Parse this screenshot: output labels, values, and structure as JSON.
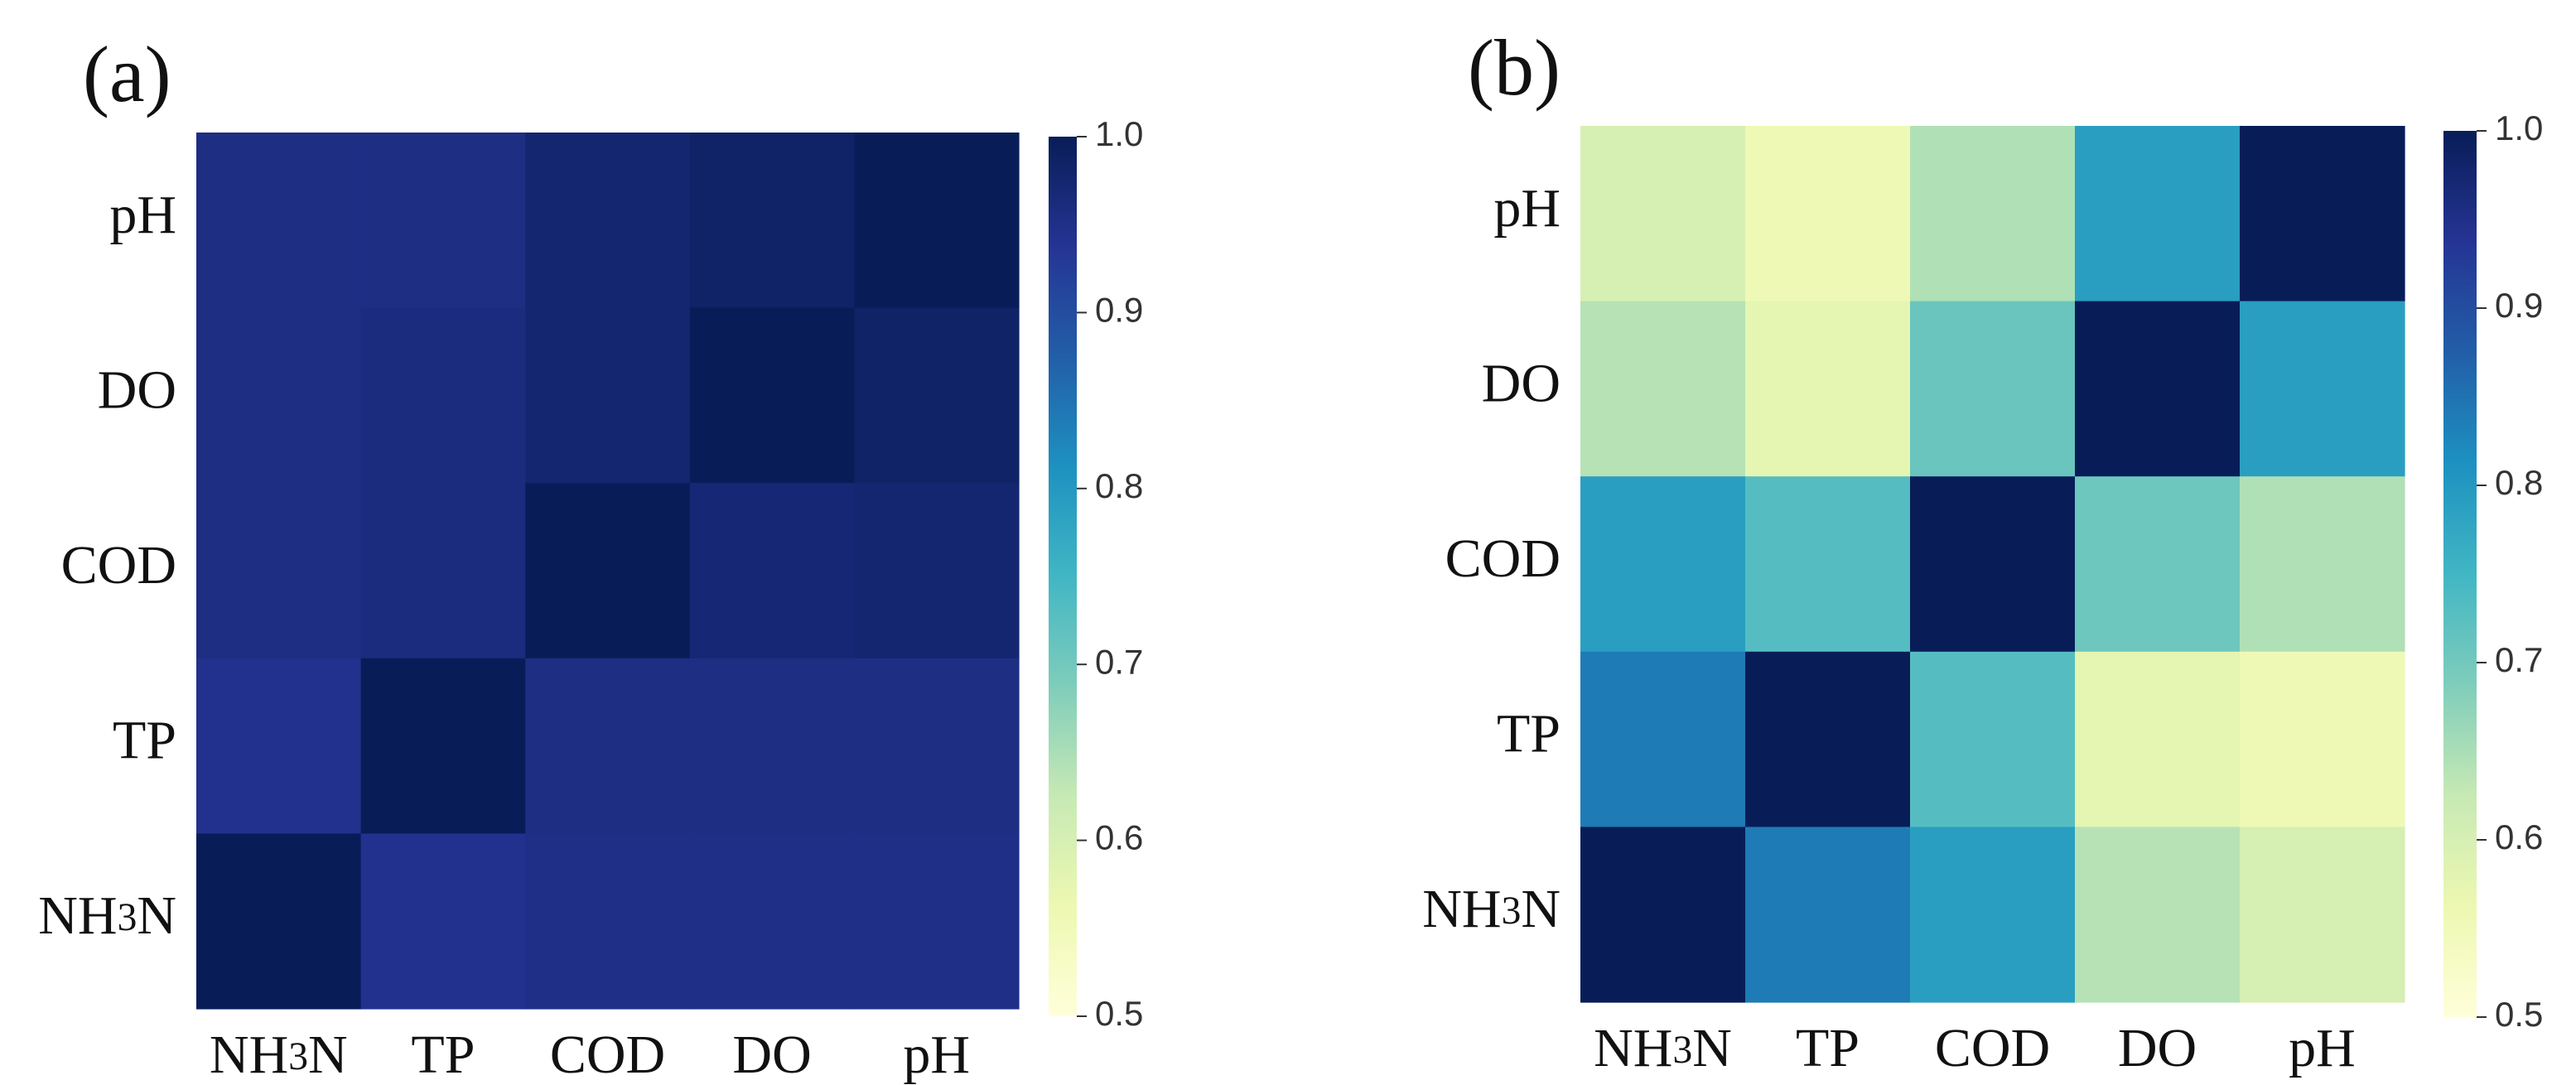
{
  "chart_data": [
    {
      "type": "heatmap",
      "panel_label": "(a)",
      "x_categories": [
        "NH3N",
        "TP",
        "COD",
        "DO",
        "pH"
      ],
      "y_categories": [
        "pH",
        "DO",
        "COD",
        "TP",
        "NH3N"
      ],
      "values": [
        [
          0.955,
          0.955,
          0.975,
          0.985,
          1.0
        ],
        [
          0.955,
          0.96,
          0.975,
          1.0,
          0.985
        ],
        [
          0.955,
          0.96,
          1.0,
          0.97,
          0.975
        ],
        [
          0.945,
          1.0,
          0.955,
          0.955,
          0.955
        ],
        [
          1.0,
          0.945,
          0.95,
          0.95,
          0.95
        ]
      ],
      "colorbar": {
        "min": 0.5,
        "max": 1.0,
        "ticks": [
          "0.5",
          "0.6",
          "0.7",
          "0.8",
          "0.9",
          "1.0"
        ]
      },
      "colormap": "YlGnBu"
    },
    {
      "type": "heatmap",
      "panel_label": "(b)",
      "x_categories": [
        "NH3N",
        "TP",
        "COD",
        "DO",
        "pH"
      ],
      "y_categories": [
        "pH",
        "DO",
        "COD",
        "TP",
        "NH3N"
      ],
      "values": [
        [
          0.6,
          0.555,
          0.645,
          0.79,
          1.0
        ],
        [
          0.64,
          0.575,
          0.71,
          1.0,
          0.79
        ],
        [
          0.79,
          0.73,
          1.0,
          0.705,
          0.645
        ],
        [
          0.84,
          1.0,
          0.73,
          0.575,
          0.555
        ],
        [
          1.0,
          0.84,
          0.79,
          0.64,
          0.6
        ]
      ],
      "colorbar": {
        "min": 0.5,
        "max": 1.0,
        "ticks": [
          "0.5",
          "0.6",
          "0.7",
          "0.8",
          "0.9",
          "1.0"
        ]
      },
      "colormap": "YlGnBu"
    }
  ]
}
